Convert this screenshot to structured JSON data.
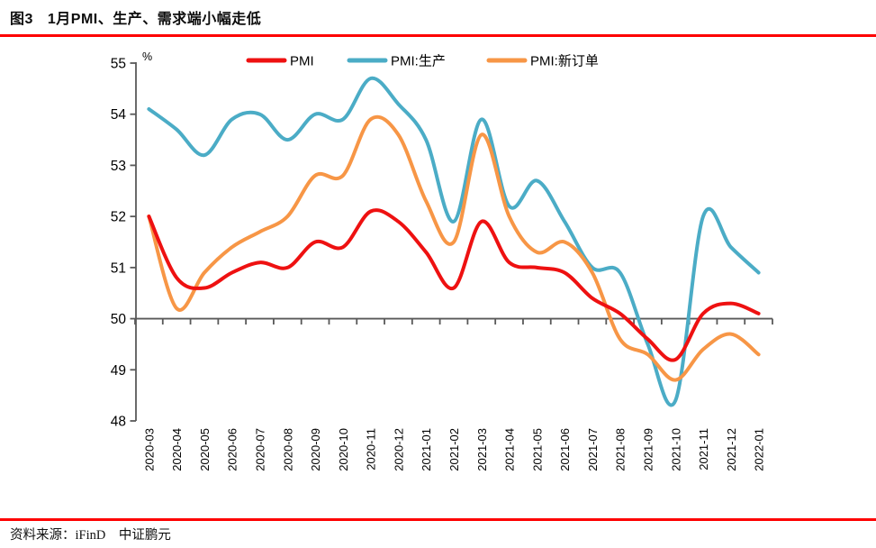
{
  "figure": {
    "label": "图3",
    "title": "1月PMI、生产、需求端小幅走低"
  },
  "source": {
    "text": "资料来源：iFinD　中证鹏元"
  },
  "colors": {
    "accent_rule": "#fe0000",
    "axis": "#595959",
    "tick_text": "#000000",
    "pmi_red": "#ee1111",
    "production_teal": "#4bacc6",
    "new_orders_orange": "#f79646"
  },
  "chart_data": {
    "type": "line",
    "title": "",
    "unit_label": "%",
    "xlabel": "",
    "ylabel": "",
    "ylim": [
      48,
      55
    ],
    "ytick_step": 1,
    "x_baseline": 50,
    "grid": false,
    "legend_position": "top",
    "smooth": true,
    "x": [
      "2020-03",
      "2020-04",
      "2020-05",
      "2020-06",
      "2020-07",
      "2020-08",
      "2020-09",
      "2020-10",
      "2020-11",
      "2020-12",
      "2021-01",
      "2021-02",
      "2021-03",
      "2021-04",
      "2021-05",
      "2021-06",
      "2021-07",
      "2021-08",
      "2021-09",
      "2021-10",
      "2021-11",
      "2021-12",
      "2022-01"
    ],
    "series": [
      {
        "name": "PMI",
        "color": "#ee1111",
        "values": [
          52.0,
          50.8,
          50.6,
          50.9,
          51.1,
          51.0,
          51.5,
          51.4,
          52.1,
          51.9,
          51.3,
          50.6,
          51.9,
          51.1,
          51.0,
          50.9,
          50.4,
          50.1,
          49.6,
          49.2,
          50.1,
          50.3,
          50.1
        ]
      },
      {
        "name": "PMI:生产",
        "color": "#4bacc6",
        "values": [
          54.1,
          53.7,
          53.2,
          53.9,
          54.0,
          53.5,
          54.0,
          53.9,
          54.7,
          54.2,
          53.5,
          51.9,
          53.9,
          52.2,
          52.7,
          51.9,
          51.0,
          50.9,
          49.5,
          48.4,
          52.0,
          51.4,
          50.9
        ]
      },
      {
        "name": "PMI:新订单",
        "color": "#f79646",
        "values": [
          52.0,
          50.2,
          50.9,
          51.4,
          51.7,
          52.0,
          52.8,
          52.8,
          53.9,
          53.6,
          52.3,
          51.5,
          53.6,
          52.0,
          51.3,
          51.5,
          50.9,
          49.6,
          49.3,
          48.8,
          49.4,
          49.7,
          49.3
        ]
      }
    ],
    "draw_order": [
      1,
      2,
      0
    ]
  }
}
